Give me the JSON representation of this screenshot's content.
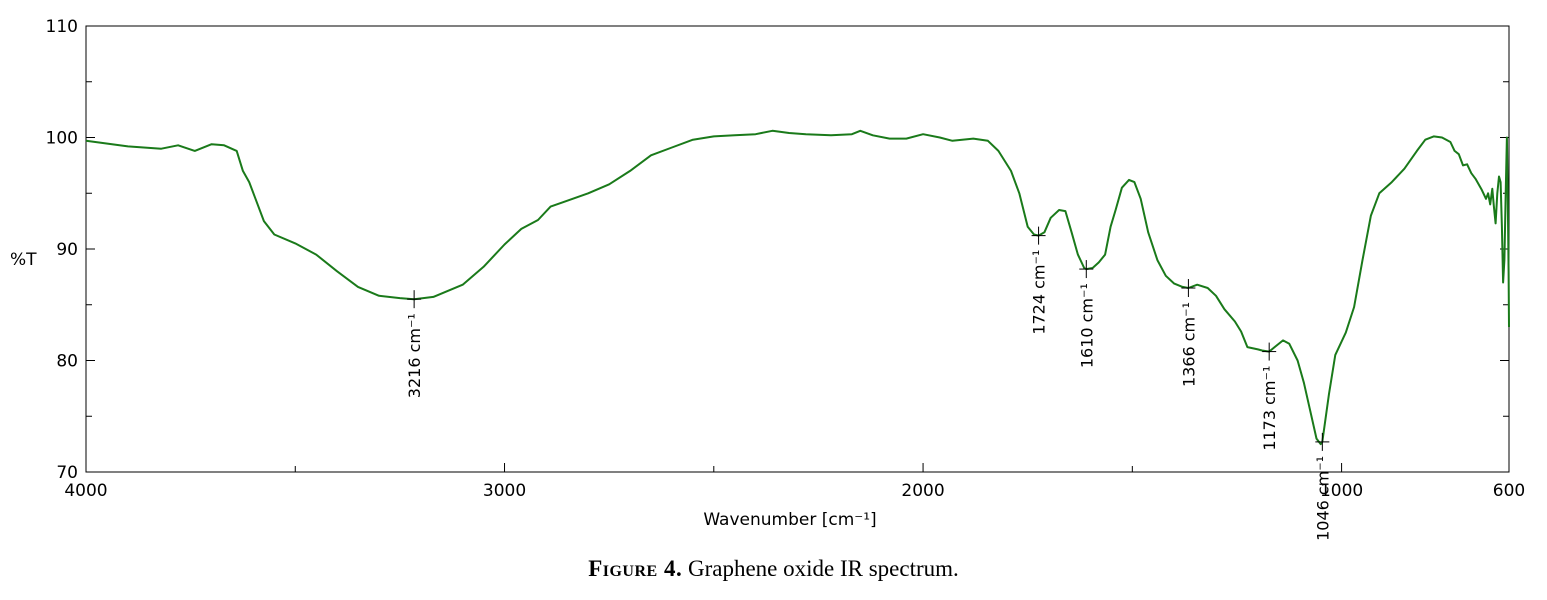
{
  "chart_data": {
    "type": "line",
    "title": "",
    "xlabel": "Wavenumber [cm⁻¹]",
    "ylabel": "%T",
    "xlim": [
      4000,
      600
    ],
    "ylim": [
      70,
      110
    ],
    "x_ticks": [
      4000,
      3000,
      2000,
      1000,
      600
    ],
    "x_minor_ticks": [
      3500,
      2500,
      1500
    ],
    "y_ticks": [
      70,
      80,
      90,
      100,
      110
    ],
    "grid": false,
    "legend": "none",
    "series": [
      {
        "color": "#1a7a1a",
        "points": [
          [
            4000,
            99.7
          ],
          [
            3900,
            99.2
          ],
          [
            3820,
            99.0
          ],
          [
            3780,
            99.3
          ],
          [
            3740,
            98.8
          ],
          [
            3700,
            99.4
          ],
          [
            3670,
            99.3
          ],
          [
            3640,
            98.8
          ],
          [
            3625,
            97.0
          ],
          [
            3610,
            96.0
          ],
          [
            3595,
            94.5
          ],
          [
            3575,
            92.5
          ],
          [
            3550,
            91.3
          ],
          [
            3500,
            90.5
          ],
          [
            3450,
            89.5
          ],
          [
            3400,
            88.0
          ],
          [
            3350,
            86.6
          ],
          [
            3300,
            85.8
          ],
          [
            3250,
            85.6
          ],
          [
            3216,
            85.5
          ],
          [
            3170,
            85.7
          ],
          [
            3100,
            86.8
          ],
          [
            3050,
            88.4
          ],
          [
            3000,
            90.4
          ],
          [
            2960,
            91.8
          ],
          [
            2920,
            92.6
          ],
          [
            2890,
            93.8
          ],
          [
            2860,
            94.2
          ],
          [
            2800,
            95.0
          ],
          [
            2750,
            95.8
          ],
          [
            2700,
            97.0
          ],
          [
            2650,
            98.4
          ],
          [
            2600,
            99.1
          ],
          [
            2550,
            99.8
          ],
          [
            2500,
            100.1
          ],
          [
            2450,
            100.2
          ],
          [
            2400,
            100.3
          ],
          [
            2360,
            100.6
          ],
          [
            2320,
            100.4
          ],
          [
            2280,
            100.3
          ],
          [
            2220,
            100.2
          ],
          [
            2170,
            100.3
          ],
          [
            2150,
            100.6
          ],
          [
            2120,
            100.2
          ],
          [
            2080,
            99.9
          ],
          [
            2040,
            99.9
          ],
          [
            2000,
            100.3
          ],
          [
            1960,
            100.0
          ],
          [
            1930,
            99.7
          ],
          [
            1880,
            99.9
          ],
          [
            1845,
            99.7
          ],
          [
            1820,
            98.8
          ],
          [
            1790,
            97.0
          ],
          [
            1770,
            95.0
          ],
          [
            1750,
            92.0
          ],
          [
            1735,
            91.3
          ],
          [
            1724,
            91.2
          ],
          [
            1710,
            91.5
          ],
          [
            1695,
            92.8
          ],
          [
            1675,
            93.5
          ],
          [
            1660,
            93.4
          ],
          [
            1645,
            91.5
          ],
          [
            1630,
            89.5
          ],
          [
            1615,
            88.3
          ],
          [
            1610,
            88.2
          ],
          [
            1595,
            88.3
          ],
          [
            1580,
            88.8
          ],
          [
            1565,
            89.5
          ],
          [
            1552,
            92.0
          ],
          [
            1540,
            93.5
          ],
          [
            1525,
            95.5
          ],
          [
            1508,
            96.2
          ],
          [
            1495,
            96.0
          ],
          [
            1480,
            94.5
          ],
          [
            1462,
            91.5
          ],
          [
            1440,
            89.0
          ],
          [
            1420,
            87.6
          ],
          [
            1400,
            86.9
          ],
          [
            1380,
            86.6
          ],
          [
            1366,
            86.5
          ],
          [
            1345,
            86.8
          ],
          [
            1320,
            86.5
          ],
          [
            1300,
            85.8
          ],
          [
            1280,
            84.6
          ],
          [
            1255,
            83.5
          ],
          [
            1240,
            82.6
          ],
          [
            1225,
            81.2
          ],
          [
            1200,
            81.0
          ],
          [
            1190,
            80.9
          ],
          [
            1173,
            80.8
          ],
          [
            1160,
            81.2
          ],
          [
            1140,
            81.8
          ],
          [
            1125,
            81.5
          ],
          [
            1105,
            80.0
          ],
          [
            1090,
            78.0
          ],
          [
            1075,
            75.5
          ],
          [
            1060,
            73.0
          ],
          [
            1050,
            72.5
          ],
          [
            1046,
            72.7
          ],
          [
            1030,
            77.0
          ],
          [
            1015,
            80.5
          ],
          [
            990,
            82.5
          ],
          [
            970,
            84.8
          ],
          [
            950,
            89.0
          ],
          [
            930,
            93.0
          ],
          [
            910,
            95.0
          ],
          [
            880,
            96.0
          ],
          [
            850,
            97.2
          ],
          [
            820,
            98.8
          ],
          [
            800,
            99.8
          ],
          [
            780,
            100.1
          ],
          [
            760,
            100.0
          ],
          [
            740,
            99.6
          ],
          [
            730,
            98.8
          ],
          [
            720,
            98.5
          ],
          [
            710,
            97.5
          ],
          [
            700,
            97.6
          ],
          [
            690,
            96.8
          ],
          [
            680,
            96.3
          ],
          [
            665,
            95.3
          ],
          [
            655,
            94.5
          ],
          [
            650,
            95.0
          ],
          [
            645,
            94.0
          ],
          [
            640,
            95.4
          ],
          [
            636,
            93.8
          ],
          [
            632,
            92.3
          ],
          [
            628,
            95.0
          ],
          [
            624,
            96.5
          ],
          [
            620,
            96.0
          ],
          [
            617,
            92.0
          ],
          [
            614,
            87.0
          ],
          [
            611,
            89.0
          ],
          [
            608,
            95.0
          ],
          [
            605,
            100.0
          ],
          [
            603,
            95.0
          ],
          [
            601,
            88.0
          ],
          [
            600,
            83.0
          ]
        ]
      }
    ],
    "annotations": [
      {
        "x": 3216,
        "y": 85.5,
        "label": "3216 cm⁻¹"
      },
      {
        "x": 1724,
        "y": 91.2,
        "label": "1724 cm⁻¹"
      },
      {
        "x": 1610,
        "y": 88.2,
        "label": "1610 cm⁻¹"
      },
      {
        "x": 1366,
        "y": 86.5,
        "label": "1366 cm⁻¹"
      },
      {
        "x": 1173,
        "y": 80.8,
        "label": "1173 cm⁻¹"
      },
      {
        "x": 1046,
        "y": 72.7,
        "label": "1046 cm⁻¹"
      }
    ]
  },
  "caption": {
    "figure_number": "Figure 4.",
    "text": " Graphene oxide IR spectrum."
  }
}
